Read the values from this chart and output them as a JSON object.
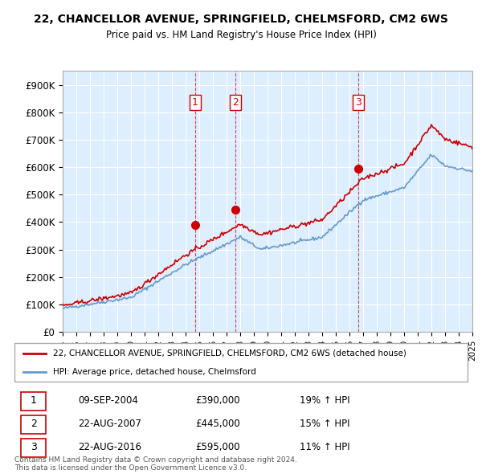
{
  "title": "22, CHANCELLOR AVENUE, SPRINGFIELD, CHELMSFORD, CM2 6WS",
  "subtitle": "Price paid vs. HM Land Registry's House Price Index (HPI)",
  "ylim": [
    0,
    950000
  ],
  "yticks": [
    0,
    100000,
    200000,
    300000,
    400000,
    500000,
    600000,
    700000,
    800000,
    900000
  ],
  "ytick_labels": [
    "£0",
    "£100K",
    "£200K",
    "£300K",
    "£400K",
    "£500K",
    "£600K",
    "£700K",
    "£800K",
    "£900K"
  ],
  "plot_bg_color": "#ddeeff",
  "grid_color": "#ffffff",
  "red_color": "#cc0000",
  "blue_color": "#6699cc",
  "sale_points": [
    {
      "year": 2004.69,
      "price": 390000,
      "label": "1"
    },
    {
      "year": 2007.64,
      "price": 445000,
      "label": "2"
    },
    {
      "year": 2016.64,
      "price": 595000,
      "label": "3"
    }
  ],
  "legend_entries": [
    "22, CHANCELLOR AVENUE, SPRINGFIELD, CHELMSFORD, CM2 6WS (detached house)",
    "HPI: Average price, detached house, Chelmsford"
  ],
  "table_rows": [
    [
      "1",
      "09-SEP-2004",
      "£390,000",
      "19% ↑ HPI"
    ],
    [
      "2",
      "22-AUG-2007",
      "£445,000",
      "15% ↑ HPI"
    ],
    [
      "3",
      "22-AUG-2016",
      "£595,000",
      "11% ↑ HPI"
    ]
  ],
  "footer": "Contains HM Land Registry data © Crown copyright and database right 2024.\nThis data is licensed under the Open Government Licence v3.0.",
  "xmin": 1995,
  "xmax": 2025
}
